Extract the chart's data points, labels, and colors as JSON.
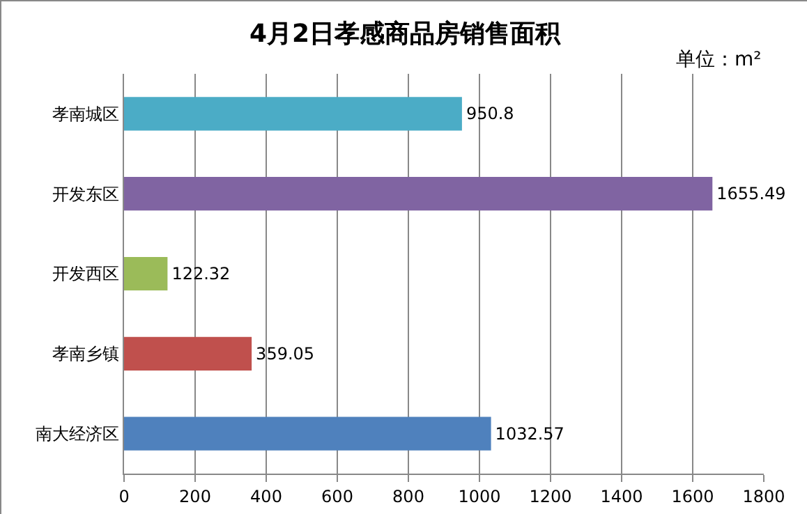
{
  "chart_data": {
    "type": "bar",
    "orientation": "horizontal",
    "title": "4月2日孝感商品房销售面积",
    "annotations": [
      "单位：m²"
    ],
    "categories": [
      "孝南城区",
      "开发东区",
      "开发西区",
      "孝南乡镇",
      "南大经济区"
    ],
    "values": [
      950.8,
      1655.49,
      122.32,
      359.05,
      1032.57
    ],
    "colors": [
      "#4bacc6",
      "#8064a2",
      "#9bbb59",
      "#c0504d",
      "#4f81bd"
    ],
    "xlim": [
      0,
      1800
    ],
    "xticks": [
      0,
      200,
      400,
      600,
      800,
      1000,
      1200,
      1400,
      1600,
      1800
    ],
    "grid": "x",
    "data_labels": true
  }
}
